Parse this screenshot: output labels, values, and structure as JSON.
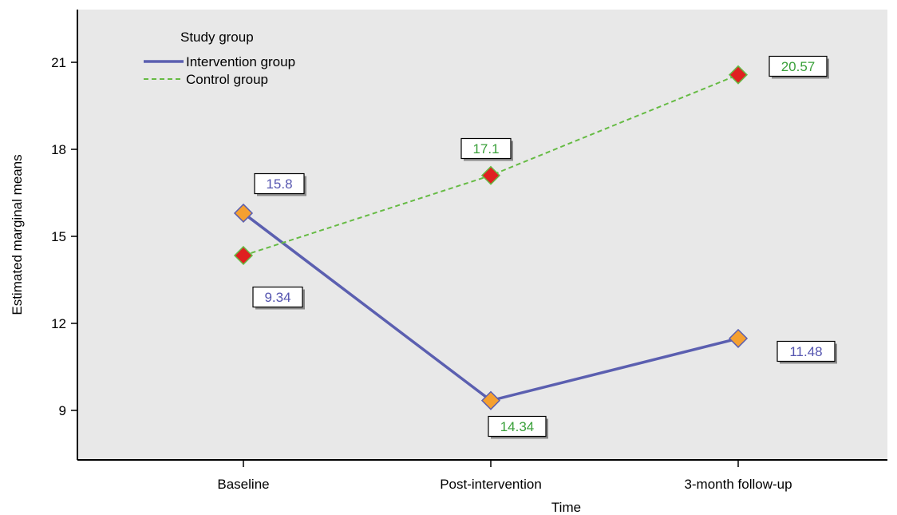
{
  "chart_data": {
    "type": "line",
    "categories": [
      "Baseline",
      "Post-intervention",
      "3-month follow-up"
    ],
    "xlabel": "Time",
    "ylabel": "Estimated marginal means",
    "yticks": [
      9,
      12,
      15,
      18,
      21
    ],
    "ylim": [
      6.9,
      23
    ],
    "grid": false,
    "legend": {
      "title": "Study group",
      "placement": "top-left"
    },
    "series": [
      {
        "name": "Intervention group",
        "values": [
          15.8,
          9.34,
          11.48
        ],
        "labels": [
          "15.8",
          "9.34",
          "11.48"
        ],
        "line_color": "#5b5fb0",
        "line_style": "solid",
        "marker_color": "#f5a030",
        "label_color": "#5555b0"
      },
      {
        "name": "Control group",
        "values": [
          14.34,
          17.1,
          20.57
        ],
        "labels": [
          "14.34",
          "17.1",
          "20.57"
        ],
        "line_color": "#66bb44",
        "line_style": "dashed",
        "marker_color": "#e02020",
        "label_color": "#3aa03a"
      }
    ],
    "plot_background": "#e8e8e8"
  }
}
